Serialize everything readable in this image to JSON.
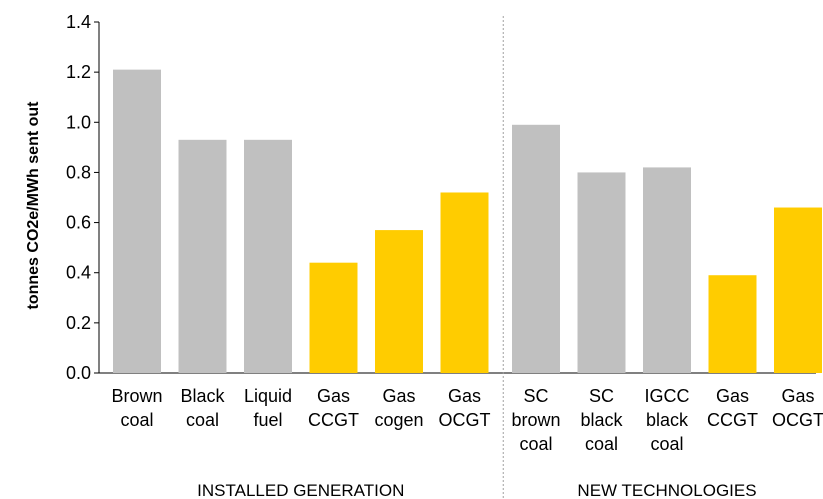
{
  "chart_data": {
    "type": "bar",
    "ylabel": "tonnes CO2e/MWh sent out",
    "ylim": [
      0,
      1.4
    ],
    "yticks": [
      "0.0",
      "0.2",
      "0.4",
      "0.6",
      "0.8",
      "1.0",
      "1.2",
      "1.4"
    ],
    "grid": false,
    "colors": {
      "grey": "#c0c0c0",
      "yellow": "#ffcc00"
    },
    "groups": [
      {
        "label": "INSTALLED GENERATION",
        "bars": [
          {
            "label": [
              "Brown",
              "coal"
            ],
            "value": 1.21,
            "color": "grey"
          },
          {
            "label": [
              "Black",
              "coal"
            ],
            "value": 0.93,
            "color": "grey"
          },
          {
            "label": [
              "Liquid",
              "fuel"
            ],
            "value": 0.93,
            "color": "grey"
          },
          {
            "label": [
              "Gas",
              "CCGT"
            ],
            "value": 0.44,
            "color": "yellow"
          },
          {
            "label": [
              "Gas",
              "cogen"
            ],
            "value": 0.57,
            "color": "yellow"
          },
          {
            "label": [
              "Gas",
              "OCGT"
            ],
            "value": 0.72,
            "color": "yellow"
          }
        ]
      },
      {
        "label": "NEW TECHNOLOGIES",
        "bars": [
          {
            "label": [
              "SC",
              "brown",
              "coal"
            ],
            "value": 0.99,
            "color": "grey"
          },
          {
            "label": [
              "SC",
              "black",
              "coal"
            ],
            "value": 0.8,
            "color": "grey"
          },
          {
            "label": [
              "IGCC",
              "black",
              "coal"
            ],
            "value": 0.82,
            "color": "grey"
          },
          {
            "label": [
              "Gas",
              "CCGT"
            ],
            "value": 0.39,
            "color": "yellow"
          },
          {
            "label": [
              "Gas",
              "OCGT"
            ],
            "value": 0.66,
            "color": "yellow"
          }
        ]
      }
    ]
  }
}
